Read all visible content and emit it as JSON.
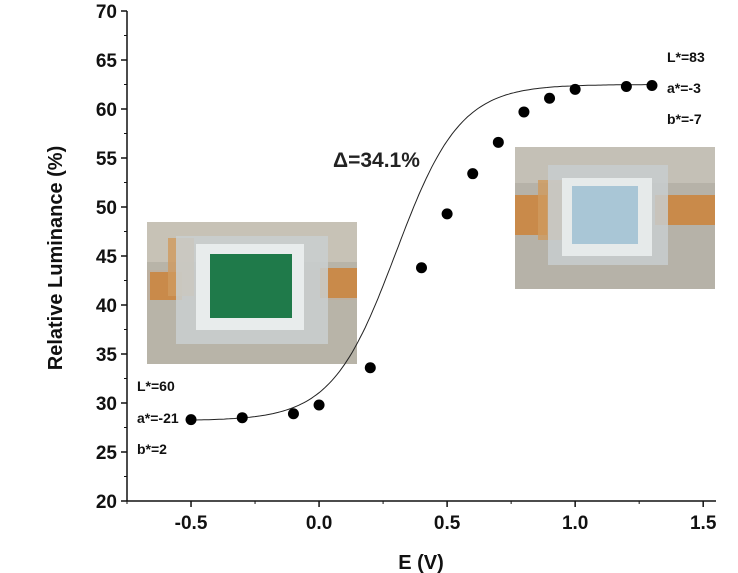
{
  "chart_data": {
    "type": "scatter",
    "xlabel": "E (V)",
    "ylabel": "Relative Luminance (%)",
    "xlim": [
      -0.75,
      1.55
    ],
    "ylim": [
      20,
      70
    ],
    "x_ticks": [
      "-0.5",
      "0.0",
      "0.5",
      "1.0",
      "1.5"
    ],
    "y_ticks": [
      "20",
      "25",
      "30",
      "35",
      "40",
      "45",
      "50",
      "55",
      "60",
      "65",
      "70"
    ],
    "x_tick_values": [
      -0.5,
      0.0,
      0.5,
      1.0,
      1.5
    ],
    "y_tick_values": [
      20,
      25,
      30,
      35,
      40,
      45,
      50,
      55,
      60,
      65,
      70
    ],
    "grid": false,
    "series": [
      {
        "x": [
          -0.5,
          -0.3,
          -0.1,
          0.0,
          0.2,
          0.4,
          0.5,
          0.6,
          0.7,
          0.8,
          0.9,
          1.0,
          1.2,
          1.3
        ],
        "y": [
          28.3,
          28.5,
          28.9,
          29.8,
          33.6,
          43.8,
          49.3,
          53.4,
          56.6,
          59.7,
          61.1,
          62.0,
          62.3,
          62.4
        ],
        "marker_color": "#000000",
        "fit_line": true
      }
    ],
    "annotations": {
      "delta": "Δ=34.1%",
      "left_color": [
        "L*=60",
        "a*=-21",
        "b*=2"
      ],
      "right_color": [
        "L*=83",
        "a*=-3",
        "b*=-7"
      ]
    },
    "photos": {
      "left_film_color": "#1f7a4a",
      "right_film_color": "#a9c6d6"
    }
  }
}
